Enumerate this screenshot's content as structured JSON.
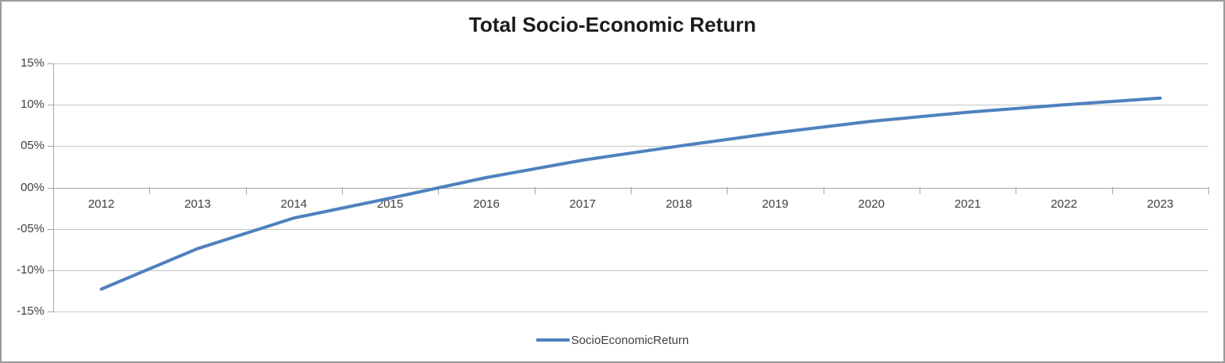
{
  "title": "Total Socio-Economic Return",
  "legend": {
    "series_label": "SocioEconomicReturn"
  },
  "colors": {
    "series": "#4F81BD",
    "gridline": "#C6C6C6",
    "axis": "#A6A6A6",
    "tick_text": "#3F3F3F",
    "border": "#9B9B9B",
    "background": "#FFFFFF"
  },
  "y_axis": {
    "tick_labels": [
      "15%",
      "10%",
      "05%",
      "00%",
      "-05%",
      "-10%",
      "-15%"
    ],
    "tick_values": [
      15,
      10,
      5,
      0,
      -5,
      -10,
      -15
    ]
  },
  "x_axis": {
    "tick_labels": [
      "2012",
      "2013",
      "2014",
      "2015",
      "2016",
      "2017",
      "2018",
      "2019",
      "2020",
      "2021",
      "2022",
      "2023"
    ]
  },
  "chart_data": {
    "type": "line",
    "title": "Total Socio-Economic Return",
    "categories": [
      "2012",
      "2013",
      "2014",
      "2015",
      "2016",
      "2017",
      "2018",
      "2019",
      "2020",
      "2021",
      "2022",
      "2023"
    ],
    "series": [
      {
        "name": "SocioEconomicReturn",
        "values": [
          -12.3,
          -7.4,
          -3.7,
          -1.3,
          1.2,
          3.3,
          5.0,
          6.6,
          8.0,
          9.1,
          10.0,
          10.8
        ]
      }
    ],
    "xlabel": "",
    "ylabel": "",
    "ylim": [
      -15,
      15
    ],
    "y_tick_step": 5,
    "y_tick_format": "zero-padded percent",
    "grid": true,
    "legend_position": "bottom-center"
  }
}
